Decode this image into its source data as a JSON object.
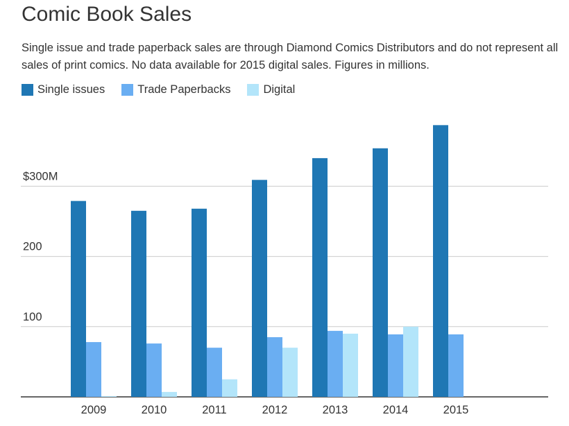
{
  "chart_data": {
    "type": "bar",
    "title": "Comic Book Sales",
    "subtitle": "Single issue and trade paperback sales are through Diamond Comics Distributors and do not represent all sales of print comics. No data available for 2015 digital sales. Figures in millions.",
    "categories": [
      "2009",
      "2010",
      "2011",
      "2012",
      "2013",
      "2014",
      "2015"
    ],
    "series": [
      {
        "name": "Single issues",
        "color": "#1f77b4",
        "values": [
          279,
          265,
          268,
          309,
          340,
          354,
          387
        ]
      },
      {
        "name": "Trade Paperbacks",
        "color": "#6aaef2",
        "values": [
          78,
          76,
          70,
          85,
          94,
          89,
          89
        ]
      },
      {
        "name": "Digital",
        "color": "#b3e5fa",
        "values": [
          1,
          7,
          25,
          70,
          90,
          100,
          null
        ]
      }
    ],
    "y_ticks": [
      {
        "value": 100,
        "label": "100"
      },
      {
        "value": 200,
        "label": "200"
      },
      {
        "value": 300,
        "label": "$300M"
      }
    ],
    "ylim": [
      0,
      400
    ],
    "grid": true,
    "legend_position": "top-left"
  }
}
